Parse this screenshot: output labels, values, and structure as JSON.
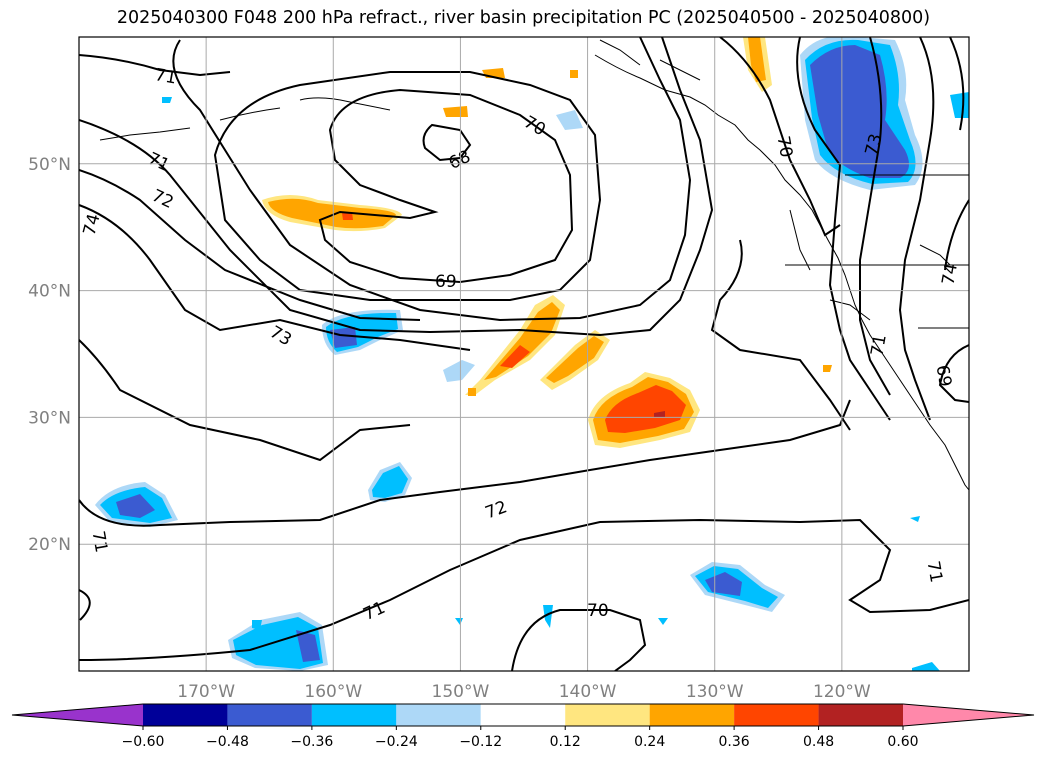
{
  "title": "2025040300 F048 200 hPa refract., river basin precipitation PC (2025040500 - 2025040800)",
  "map": {
    "lon_range": [
      -180,
      -110
    ],
    "lat_range": [
      10,
      60
    ],
    "lon_ticks": [
      {
        "value": -170,
        "label": "170°W"
      },
      {
        "value": -160,
        "label": "160°W"
      },
      {
        "value": -150,
        "label": "150°W"
      },
      {
        "value": -140,
        "label": "140°W"
      },
      {
        "value": -130,
        "label": "130°W"
      },
      {
        "value": -120,
        "label": "120°W"
      }
    ],
    "lat_ticks": [
      {
        "value": 20,
        "label": "20°N"
      },
      {
        "value": 30,
        "label": "30°N"
      },
      {
        "value": 40,
        "label": "40°N"
      },
      {
        "value": 50,
        "label": "50°N"
      }
    ],
    "grid": true,
    "tick_label_color": "#808080"
  },
  "contour_labels": [
    "71",
    "71",
    "72",
    "74",
    "73",
    "69",
    "68",
    "70",
    "72",
    "71",
    "70",
    "71",
    "73",
    "71",
    "69",
    "70",
    "71",
    "74"
  ],
  "colorbar": {
    "colors": [
      "#9933cc",
      "#000099",
      "#3b5bd1",
      "#00bfff",
      "#add8f7",
      "#ffffff",
      "#ffe680",
      "#ffa500",
      "#ff4500",
      "#b22222",
      "#ff88aa"
    ],
    "ticks": [
      "−0.60",
      "−0.48",
      "−0.36",
      "−0.24",
      "−0.12",
      "0.12",
      "0.24",
      "0.36",
      "0.48",
      "0.60"
    ],
    "extend": "both"
  }
}
